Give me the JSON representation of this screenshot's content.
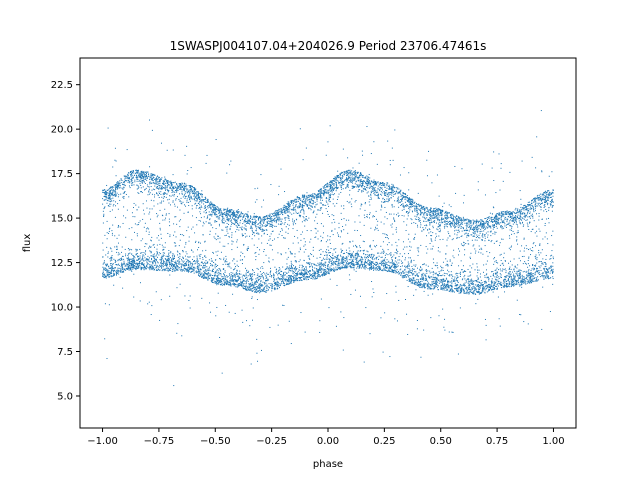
{
  "chart_data": {
    "type": "scatter",
    "title": "1SWASPJ004107.04+204026.9 Period 23706.47461s",
    "xlabel": "phase",
    "ylabel": "flux",
    "xlim": [
      -1.1,
      1.1
    ],
    "ylim": [
      3.2,
      24.0
    ],
    "xticks": [
      -1.0,
      -0.75,
      -0.5,
      -0.25,
      0.0,
      0.25,
      0.5,
      0.75,
      1.0
    ],
    "xtick_labels": [
      "−1.00",
      "−0.75",
      "−0.50",
      "−0.25",
      "0.00",
      "0.25",
      "0.50",
      "0.75",
      "1.00"
    ],
    "yticks": [
      5.0,
      7.5,
      10.0,
      12.5,
      15.0,
      17.5,
      20.0,
      22.5
    ],
    "ytick_labels": [
      "5.0",
      "7.5",
      "10.0",
      "12.5",
      "15.0",
      "17.5",
      "20.0",
      "22.5"
    ],
    "grid": false,
    "marker_color": "#1f77b4",
    "band_model": {
      "description_of_data": "dense cloud of points between lower and upper envelopes, phase-folded light curve",
      "x_range": [
        -1.0,
        1.0
      ],
      "upper_envelope": {
        "x": [
          -1.0,
          -0.85,
          -0.65,
          -0.45,
          -0.3,
          -0.1,
          0.1,
          0.25,
          0.45,
          0.65,
          0.8,
          1.0
        ],
        "y": [
          16.6,
          17.7,
          17.0,
          15.5,
          15.1,
          16.3,
          17.7,
          17.0,
          15.6,
          14.9,
          15.4,
          16.6
        ]
      },
      "lower_envelope": {
        "x": [
          -1.0,
          -0.85,
          -0.65,
          -0.45,
          -0.3,
          -0.1,
          0.1,
          0.25,
          0.45,
          0.65,
          0.8,
          1.0
        ],
        "y": [
          11.6,
          12.1,
          12.0,
          11.2,
          10.8,
          11.5,
          12.2,
          12.0,
          11.0,
          10.7,
          11.1,
          11.6
        ]
      },
      "outlier_y_range": [
        4.2,
        23.0
      ]
    }
  }
}
